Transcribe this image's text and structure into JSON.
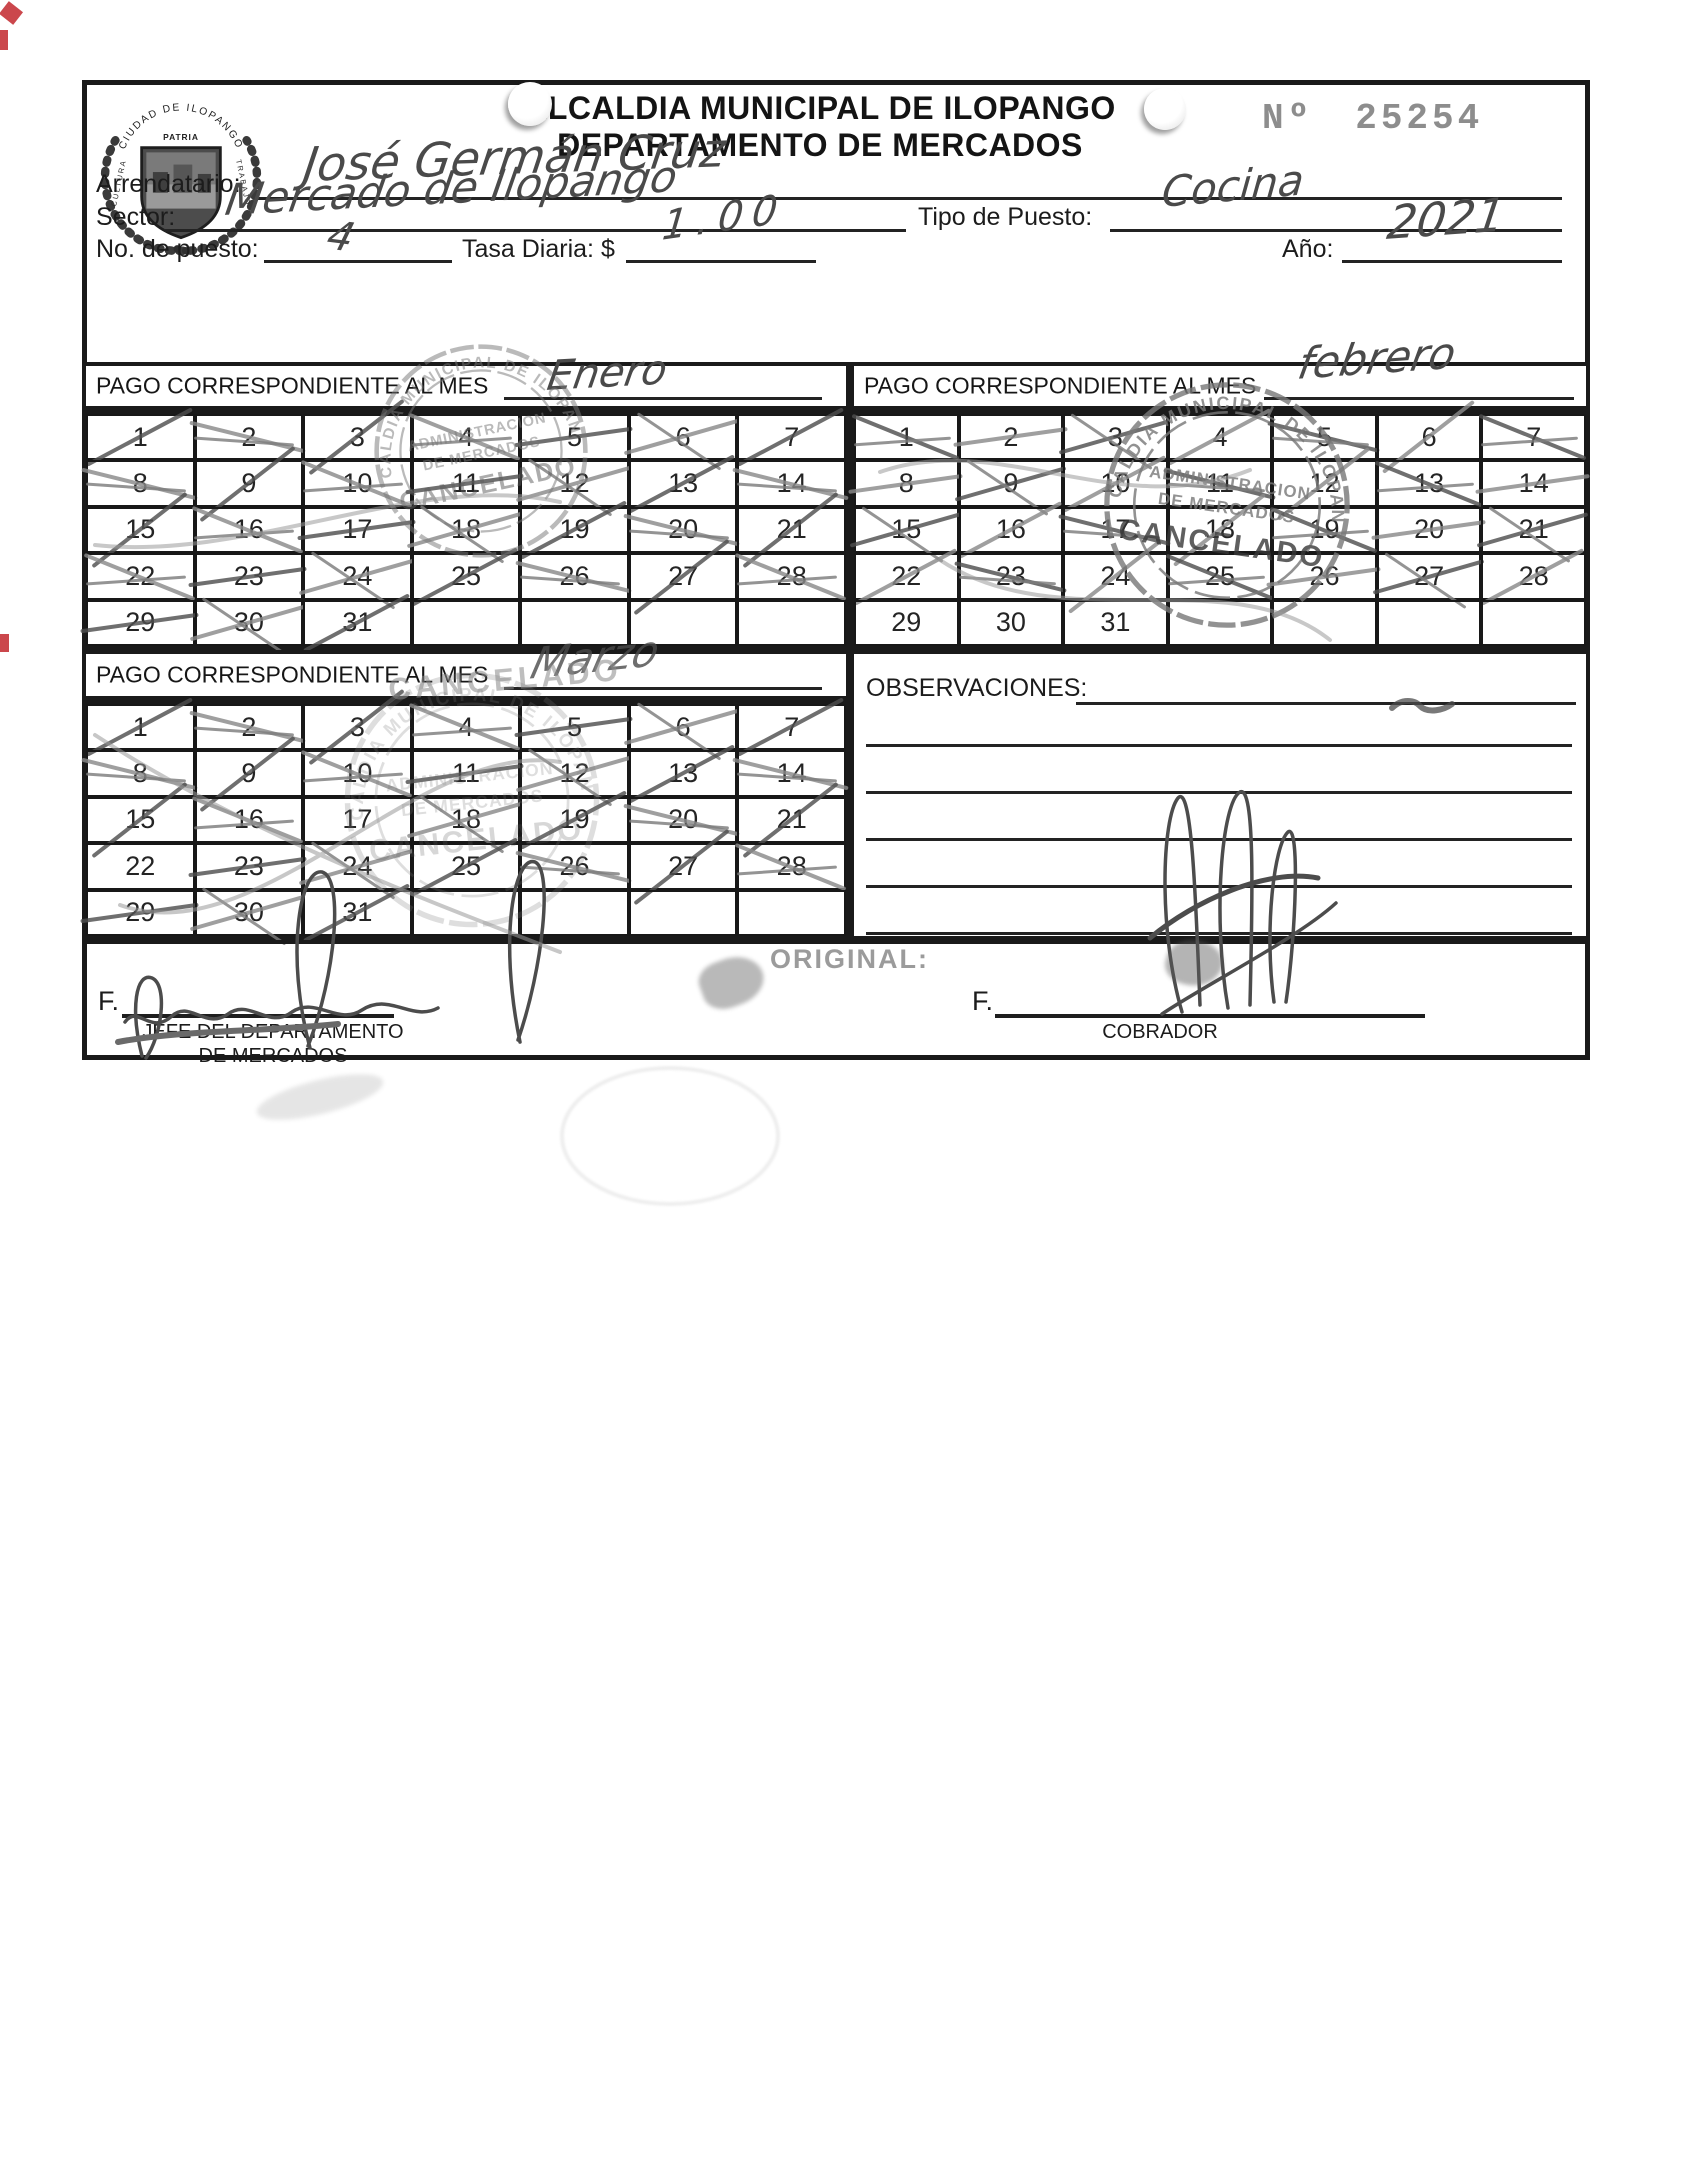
{
  "colors": {
    "ink_black": "#1a1a1a",
    "ink_pen": "#4a4a4a",
    "pen_light": "#8a8a8a",
    "stamp_gray": "#787878",
    "number_gray": "#8d8d8d",
    "edge_mark_red": "#c2272d",
    "paper": "#ffffff"
  },
  "header": {
    "title_line1": "ALCALDIA MUNICIPAL DE ILOPANGO",
    "title_line2": "DEPARTAMENTO DE MERCADOS",
    "receipt_number_label": "Nº",
    "receipt_number": "25254",
    "seal": {
      "arc_text": "CIUDAD DE ILOPANGO",
      "motto": "PATRIA",
      "left_text": "CULTURA",
      "right_text": "TRABAJO"
    }
  },
  "fields": {
    "arrendatario": {
      "label": "Arrendatario:",
      "value": "José Germán Cruz"
    },
    "sector": {
      "label": "Sector:",
      "value": "Mercado de Ilopango"
    },
    "tipo_puesto": {
      "label": "Tipo de Puesto:",
      "value": "Cocina"
    },
    "no_puesto": {
      "label": "No. de puesto:",
      "value": "4"
    },
    "tasa_diaria": {
      "label": "Tasa Diaria: $",
      "value": "1.00"
    },
    "anio": {
      "label": "Año:",
      "value": "2021"
    }
  },
  "calendars": [
    {
      "label": "PAGO CORRESPONDIENTE AL MES",
      "month_handwritten": "Enero",
      "day_rows": [
        [
          1,
          2,
          3,
          4,
          5,
          6,
          7
        ],
        [
          8,
          9,
          10,
          11,
          12,
          13,
          14
        ],
        [
          15,
          16,
          17,
          18,
          19,
          20,
          21
        ],
        [
          22,
          23,
          24,
          25,
          26,
          27,
          28
        ],
        [
          29,
          30,
          31,
          "",
          "",
          "",
          ""
        ]
      ],
      "crossed_days": [
        1,
        2,
        3,
        4,
        5,
        6,
        7,
        8,
        9,
        10,
        11,
        12,
        13,
        14,
        15,
        16,
        17,
        18,
        19,
        20,
        21,
        22,
        23,
        24,
        25,
        26,
        27,
        28,
        29,
        30,
        31
      ]
    },
    {
      "label": "PAGO CORRESPONDIENTE AL MES",
      "month_handwritten": "febrero",
      "day_rows": [
        [
          1,
          2,
          3,
          4,
          5,
          6,
          7
        ],
        [
          8,
          9,
          10,
          11,
          12,
          13,
          14
        ],
        [
          15,
          16,
          17,
          18,
          19,
          20,
          21
        ],
        [
          22,
          23,
          24,
          25,
          26,
          27,
          28
        ],
        [
          29,
          30,
          31,
          "",
          "",
          "",
          ""
        ]
      ],
      "crossed_days": [
        1,
        2,
        3,
        4,
        5,
        6,
        7,
        8,
        9,
        10,
        11,
        12,
        13,
        14,
        15,
        16,
        17,
        18,
        19,
        20,
        21,
        22,
        23,
        24,
        25,
        26,
        27,
        28
      ]
    },
    {
      "label": "PAGO CORRESPONDIENTE AL MES",
      "month_handwritten": "Marzo",
      "day_rows": [
        [
          1,
          2,
          3,
          4,
          5,
          6,
          7
        ],
        [
          8,
          9,
          10,
          11,
          12,
          13,
          14
        ],
        [
          15,
          16,
          17,
          18,
          19,
          20,
          21
        ],
        [
          22,
          23,
          24,
          25,
          26,
          27,
          28
        ],
        [
          29,
          30,
          31,
          "",
          "",
          "",
          ""
        ]
      ],
      "crossed_days": [
        1,
        2,
        3,
        4,
        5,
        6,
        7,
        8,
        9,
        10,
        11,
        12,
        13,
        14,
        15,
        16,
        18,
        19,
        20,
        21,
        23,
        24,
        25,
        26,
        27,
        28,
        29,
        30,
        31
      ]
    }
  ],
  "observations": {
    "label": "OBSERVACIONES:",
    "extra_line_count": 5
  },
  "stamp": {
    "ring_text": "ALCALDIA MUNICIPAL DE ILOPANGO",
    "line1": "ADMINISTRACION",
    "line2": "DE MERCADOS",
    "line3": "CANCELADO"
  },
  "footer": {
    "original_label": "ORIGINAL:",
    "left": {
      "f_label": "F.",
      "role_line1": "JEFE DEL DEPARTAMENTO",
      "role_line2": "DE MERCADOS"
    },
    "right": {
      "f_label": "F.",
      "role": "COBRADOR"
    }
  }
}
